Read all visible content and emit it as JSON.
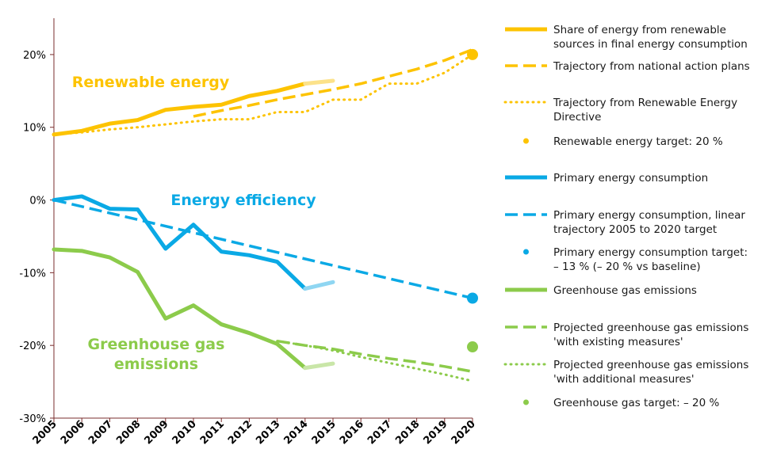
{
  "chart_data": {
    "type": "line",
    "x": [
      2005,
      2006,
      2007,
      2008,
      2009,
      2010,
      2011,
      2012,
      2013,
      2014,
      2015,
      2016,
      2017,
      2018,
      2019,
      2020
    ],
    "y_ticks": [
      "20%",
      "10%",
      "0%",
      "-10%",
      "-20%",
      "-30%"
    ],
    "ylim": [
      -30,
      25
    ],
    "annotations": [
      {
        "text": "Renewable energy",
        "color": "#FDC300"
      },
      {
        "text": "Energy efficiency",
        "color": "#0AA9E5"
      },
      {
        "text": "Greenhouse gas",
        "color": "#8CCB4B"
      },
      {
        "text": "emissions",
        "color": "#8CCB4B"
      }
    ],
    "series": [
      {
        "name": "Share of energy from renewable sources in final energy consumption",
        "style": "solid",
        "color": "#FDC300",
        "x": [
          2005,
          2006,
          2007,
          2008,
          2009,
          2010,
          2011,
          2012,
          2013,
          2014
        ],
        "y": [
          9.0,
          9.5,
          10.5,
          11.0,
          12.4,
          12.8,
          13.1,
          14.3,
          15.0,
          16.0
        ]
      },
      {
        "name": "",
        "style": "solid-light",
        "color": "#FCE28A",
        "x": [
          2014,
          2015
        ],
        "y": [
          16.0,
          16.4
        ]
      },
      {
        "name": "Trajectory from national action plans",
        "style": "dashed",
        "color": "#FDC300",
        "x": [
          2010,
          2011,
          2012,
          2013,
          2014,
          2015,
          2016,
          2017,
          2018,
          2019,
          2020
        ],
        "y": [
          11.5,
          12.3,
          13.0,
          13.8,
          14.5,
          15.2,
          16.0,
          17.0,
          18.0,
          19.2,
          20.7
        ]
      },
      {
        "name": "Trajectory from Renewable Energy Directive",
        "style": "dotted",
        "color": "#FDC300",
        "x": [
          2005,
          2006,
          2007,
          2008,
          2009,
          2010,
          2011,
          2012,
          2013,
          2014,
          2015,
          2016,
          2017,
          2018,
          2019,
          2020
        ],
        "y": [
          9.0,
          9.3,
          9.7,
          10.0,
          10.4,
          10.8,
          11.1,
          11.1,
          12.1,
          12.1,
          13.8,
          13.8,
          16.0,
          16.0,
          17.5,
          20.0
        ]
      },
      {
        "name": "Renewable energy target: 20 %",
        "style": "point",
        "color": "#FDC300",
        "x": [
          2020
        ],
        "y": [
          20.0
        ]
      },
      {
        "name": "Primary energy consumption",
        "style": "solid",
        "color": "#0AA9E5",
        "x": [
          2005,
          2006,
          2007,
          2008,
          2009,
          2010,
          2011,
          2012,
          2013,
          2014
        ],
        "y": [
          0.0,
          0.5,
          -1.2,
          -1.3,
          -6.7,
          -3.4,
          -7.1,
          -7.6,
          -8.5,
          -12.2
        ]
      },
      {
        "name": "",
        "style": "solid-light",
        "color": "#8FD6F2",
        "x": [
          2014,
          2015
        ],
        "y": [
          -12.2,
          -11.3
        ]
      },
      {
        "name": "Primary energy consumption, linear trajectory 2005 to 2020 target",
        "style": "dashed",
        "color": "#0AA9E5",
        "x": [
          2005,
          2020
        ],
        "y": [
          0.0,
          -13.5
        ]
      },
      {
        "name": "Primary energy consumption target: – 13 % (– 20 % vs baseline)",
        "style": "point",
        "color": "#0AA9E5",
        "x": [
          2020
        ],
        "y": [
          -13.5
        ]
      },
      {
        "name": "Greenhouse gas emissions",
        "style": "solid",
        "color": "#8CCB4B",
        "x": [
          2005,
          2006,
          2007,
          2008,
          2009,
          2010,
          2011,
          2012,
          2013,
          2014
        ],
        "y": [
          -6.8,
          -7.0,
          -7.9,
          -9.9,
          -16.3,
          -14.5,
          -17.1,
          -18.3,
          -19.8,
          -23.1
        ]
      },
      {
        "name": "",
        "style": "solid-light",
        "color": "#C9E6A8",
        "x": [
          2014,
          2015
        ],
        "y": [
          -23.1,
          -22.5
        ]
      },
      {
        "name": "Projected greenhouse gas emissions 'with existing measures'",
        "style": "dashed",
        "color": "#8CCB4B",
        "x": [
          2013,
          2014,
          2015,
          2016,
          2017,
          2018,
          2019,
          2020
        ],
        "y": [
          -19.4,
          -20.0,
          -20.5,
          -21.2,
          -21.8,
          -22.3,
          -22.9,
          -23.6
        ]
      },
      {
        "name": "Projected greenhouse gas emissions 'with additional measures'",
        "style": "dotted",
        "color": "#8CCB4B",
        "x": [
          2013,
          2014,
          2015,
          2016,
          2017,
          2018,
          2019,
          2020
        ],
        "y": [
          -19.4,
          -20.0,
          -20.7,
          -21.6,
          -22.4,
          -23.2,
          -24.0,
          -24.9
        ]
      },
      {
        "name": "Greenhouse gas target: – 20 %",
        "style": "point",
        "color": "#8CCB4B",
        "x": [
          2020
        ],
        "y": [
          -20.2
        ]
      }
    ],
    "legend": {
      "placement": "right",
      "items": [
        {
          "lines": [
            "Share of energy from renewable",
            "sources in final energy consumption"
          ],
          "style": "solid",
          "color": "#FDC300"
        },
        {
          "lines": [
            "Trajectory from national action plans"
          ],
          "style": "dashed",
          "color": "#FDC300"
        },
        {
          "lines": [
            "Trajectory from Renewable Energy",
            "Directive"
          ],
          "style": "dotted",
          "color": "#FDC300"
        },
        {
          "lines": [
            "Renewable energy target: 20 %"
          ],
          "style": "point",
          "color": "#FDC300"
        },
        {
          "lines": [
            "Primary energy consumption"
          ],
          "style": "solid",
          "color": "#0AA9E5"
        },
        {
          "lines": [
            "Primary energy consumption, linear",
            "trajectory 2005 to 2020 target"
          ],
          "style": "dashed",
          "color": "#0AA9E5"
        },
        {
          "lines": [
            "Primary energy consumption target:",
            "– 13 % (– 20 % vs baseline)"
          ],
          "style": "point",
          "color": "#0AA9E5"
        },
        {
          "lines": [
            "Greenhouse gas emissions"
          ],
          "style": "solid",
          "color": "#8CCB4B"
        },
        {
          "lines": [
            "Projected greenhouse gas emissions",
            "'with existing measures'"
          ],
          "style": "dashed",
          "color": "#8CCB4B"
        },
        {
          "lines": [
            "Projected greenhouse gas emissions",
            "'with additional measures'"
          ],
          "style": "dotted",
          "color": "#8CCB4B"
        },
        {
          "lines": [
            "Greenhouse gas target: – 20 %"
          ],
          "style": "point",
          "color": "#8CCB4B"
        }
      ]
    }
  }
}
